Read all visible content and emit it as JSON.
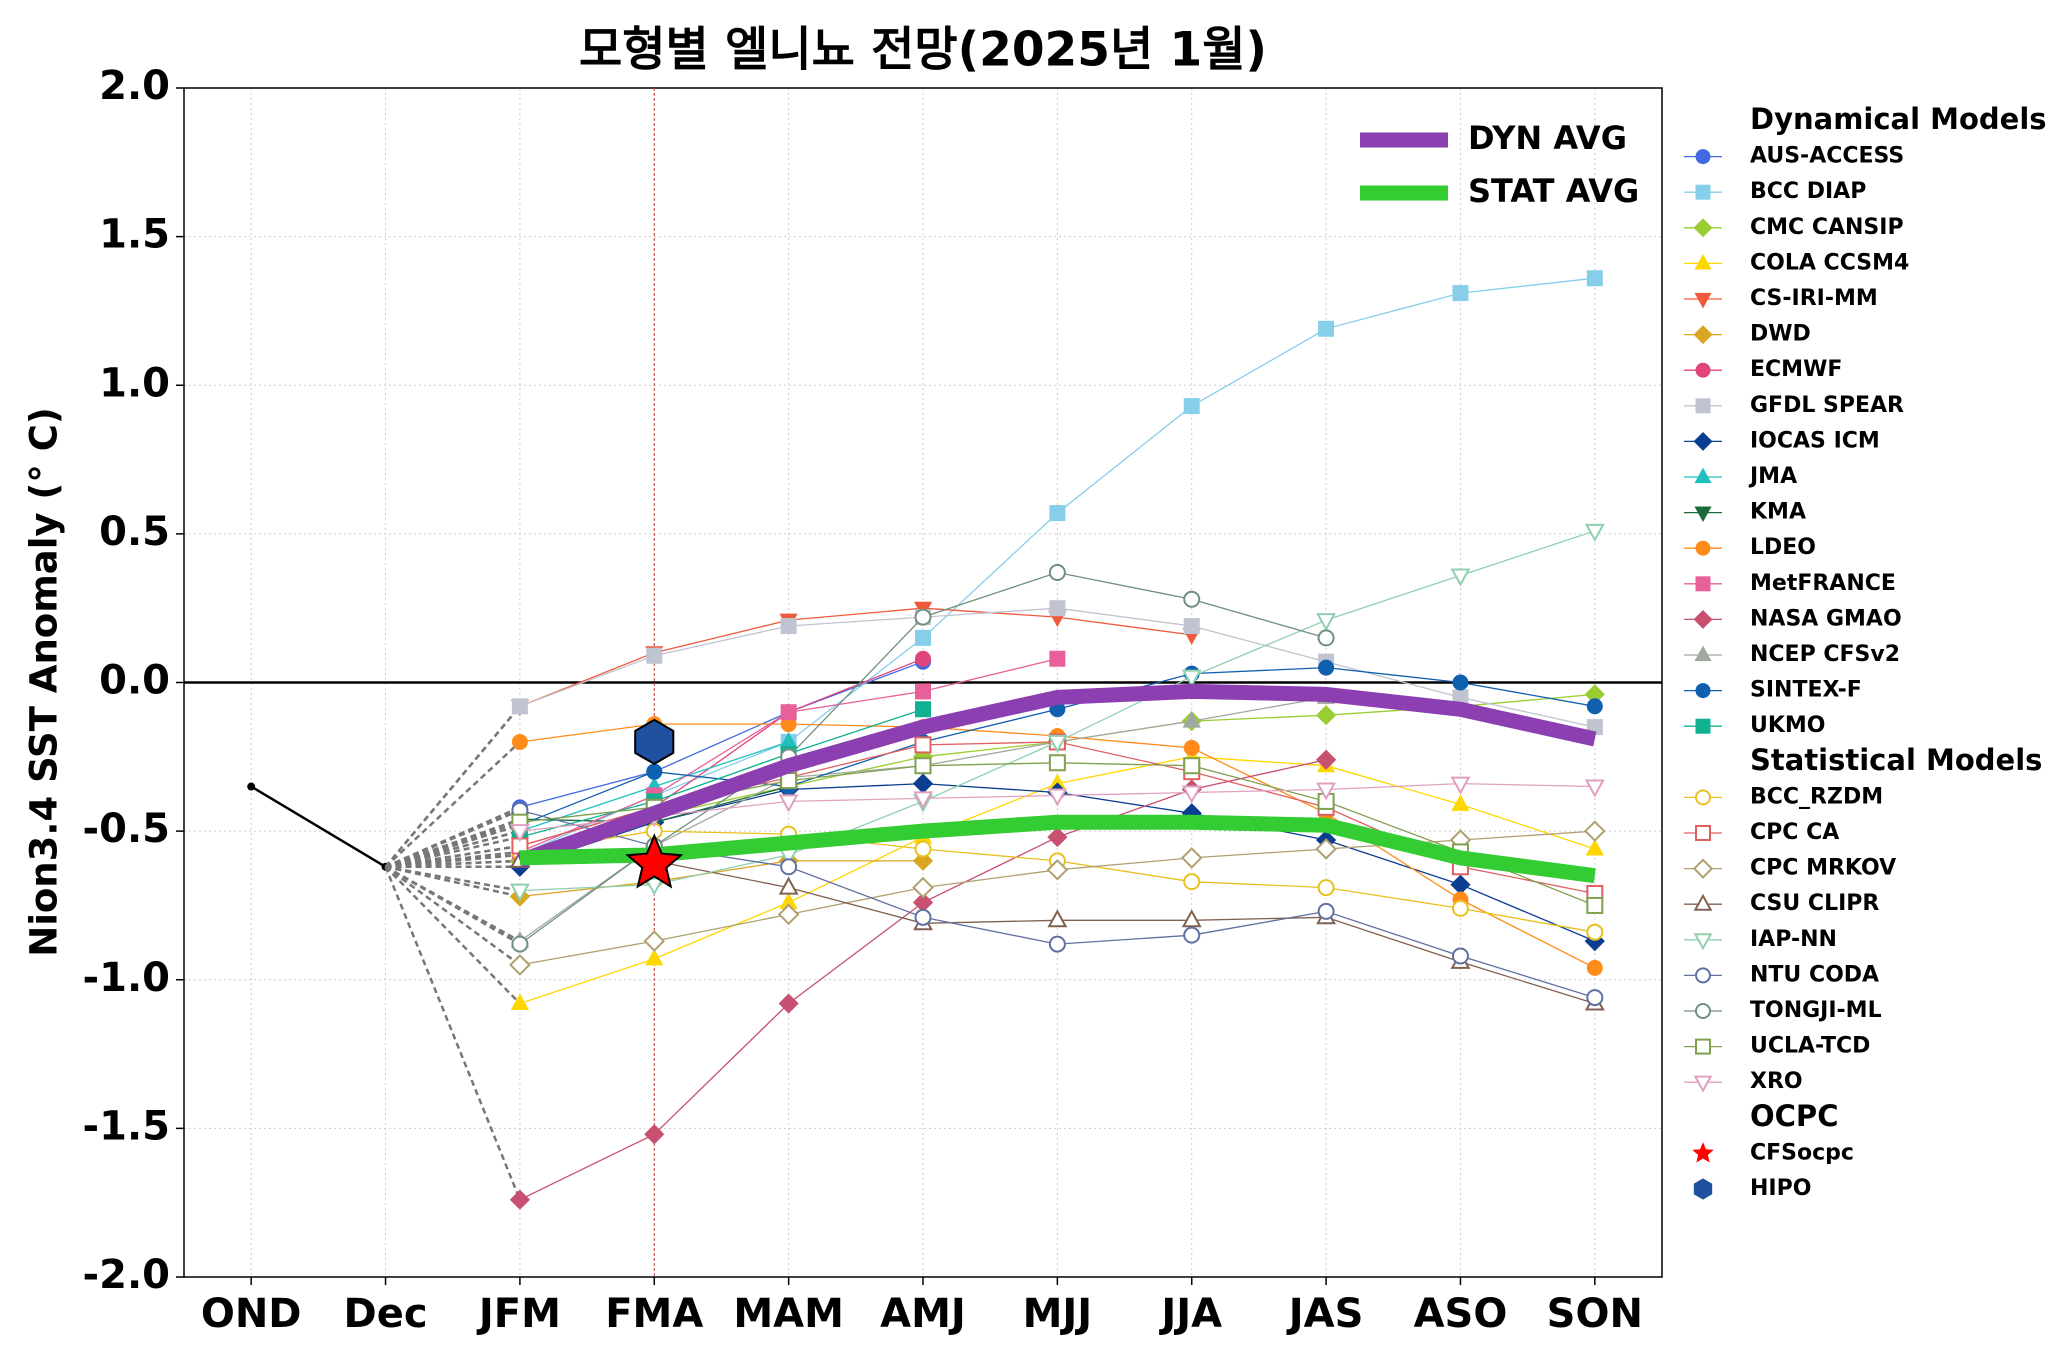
{
  "chart_data": {
    "type": "line",
    "title": "모형별 엘니뇨 전망(2025년 1월)",
    "y_label": "Nion3.4 SST Anomaly (° C)",
    "categories": [
      "OND",
      "Dec",
      "JFM",
      "FMA",
      "MAM",
      "AMJ",
      "MJJ",
      "JJA",
      "JAS",
      "ASO",
      "SON"
    ],
    "ylim": [
      -2.0,
      2.0
    ],
    "yticks": [
      {
        "value": 2.0,
        "label": "2.0"
      },
      {
        "value": 1.5,
        "label": "1.5"
      },
      {
        "value": 1.0,
        "label": "1.0"
      },
      {
        "value": 0.5,
        "label": "0.5"
      },
      {
        "value": 0.0,
        "label": "0.0"
      },
      {
        "value": -0.5,
        "label": "-0.5"
      },
      {
        "value": -1.0,
        "label": "-1.0"
      },
      {
        "value": -1.5,
        "label": "-1.5"
      },
      {
        "value": -2.0,
        "label": "-2.0"
      }
    ],
    "grid": true,
    "vline_category": 3,
    "observed": {
      "color": "#000000",
      "values": [
        -0.35,
        -0.62,
        null,
        null,
        null,
        null,
        null,
        null,
        null,
        null,
        null
      ]
    },
    "legend_groups": [
      "Dynamical Models",
      "Statistical Models",
      "OCPC"
    ],
    "series": [
      {
        "name": "AUS-ACCESS",
        "group": 0,
        "color": "#4169e1",
        "marker": "circle",
        "filled": true,
        "values": [
          null,
          null,
          -0.42,
          -0.3,
          -0.1,
          0.07,
          null,
          null,
          null,
          null,
          null
        ]
      },
      {
        "name": "BCC DIAP",
        "group": 0,
        "color": "#87ceeb",
        "marker": "square",
        "filled": true,
        "values": [
          null,
          null,
          -0.58,
          -0.38,
          -0.2,
          0.15,
          0.57,
          0.93,
          1.19,
          1.31,
          1.36
        ]
      },
      {
        "name": "CMC CANSIP",
        "group": 0,
        "color": "#9acd32",
        "marker": "diamond",
        "filled": true,
        "values": [
          null,
          null,
          -0.6,
          -0.45,
          -0.35,
          -0.25,
          -0.2,
          -0.13,
          -0.11,
          -0.08,
          -0.04
        ]
      },
      {
        "name": "COLA CCSM4",
        "group": 0,
        "color": "#ffd700",
        "marker": "triangle",
        "filled": true,
        "values": [
          null,
          null,
          -1.08,
          -0.93,
          -0.74,
          -0.52,
          -0.34,
          -0.25,
          -0.28,
          -0.41,
          -0.56
        ]
      },
      {
        "name": "CS-IRI-MM",
        "group": 0,
        "color": "#f05a3c",
        "marker": "triangle_down",
        "filled": true,
        "values": [
          null,
          null,
          -0.08,
          0.1,
          0.21,
          0.25,
          0.22,
          0.16,
          null,
          null,
          null
        ]
      },
      {
        "name": "DWD",
        "group": 0,
        "color": "#daa520",
        "marker": "diamond",
        "filled": true,
        "values": [
          null,
          null,
          -0.72,
          -0.67,
          -0.6,
          -0.6,
          null,
          null,
          null,
          null,
          null
        ]
      },
      {
        "name": "ECMWF",
        "group": 0,
        "color": "#e0457b",
        "marker": "circle",
        "filled": true,
        "values": [
          null,
          null,
          -0.55,
          -0.42,
          -0.1,
          0.08,
          null,
          null,
          null,
          null,
          null
        ]
      },
      {
        "name": "GFDL SPEAR",
        "group": 0,
        "color": "#c0c4d0",
        "marker": "square",
        "filled": true,
        "values": [
          null,
          null,
          -0.08,
          0.09,
          0.19,
          0.22,
          0.25,
          0.19,
          0.07,
          -0.05,
          -0.15
        ]
      },
      {
        "name": "IOCAS ICM",
        "group": 0,
        "color": "#0b3d91",
        "marker": "diamond",
        "filled": true,
        "values": [
          null,
          null,
          -0.62,
          -0.47,
          -0.36,
          -0.34,
          -0.37,
          -0.44,
          -0.53,
          -0.68,
          -0.87
        ]
      },
      {
        "name": "JMA",
        "group": 0,
        "color": "#20c0c0",
        "marker": "triangle",
        "filled": true,
        "values": [
          null,
          null,
          -0.5,
          -0.35,
          -0.2,
          null,
          null,
          null,
          null,
          null,
          null
        ]
      },
      {
        "name": "KMA",
        "group": 0,
        "color": "#1a6b3c",
        "marker": "triangle_down",
        "filled": true,
        "values": [
          null,
          null,
          -0.46,
          -0.47,
          -0.35,
          null,
          null,
          null,
          null,
          null,
          null
        ]
      },
      {
        "name": "LDEO",
        "group": 0,
        "color": "#ff8c1a",
        "marker": "circle",
        "filled": true,
        "values": [
          null,
          null,
          -0.2,
          -0.14,
          -0.14,
          -0.15,
          -0.18,
          -0.22,
          -0.44,
          -0.73,
          -0.96
        ]
      },
      {
        "name": "MetFRANCE",
        "group": 0,
        "color": "#e8609a",
        "marker": "square",
        "filled": true,
        "values": [
          null,
          null,
          -0.57,
          -0.38,
          -0.1,
          -0.03,
          0.08,
          null,
          null,
          null,
          null
        ]
      },
      {
        "name": "NASA GMAO",
        "group": 0,
        "color": "#c85070",
        "marker": "diamond",
        "filled": true,
        "values": [
          null,
          null,
          -1.74,
          -1.52,
          -1.08,
          -0.74,
          -0.52,
          -0.36,
          -0.26,
          null,
          null
        ]
      },
      {
        "name": "NCEP CFSv2",
        "group": 0,
        "color": "#a0a8a0",
        "marker": "triangle",
        "filled": true,
        "values": [
          null,
          null,
          -0.87,
          -0.55,
          -0.32,
          -0.28,
          -0.2,
          -0.13,
          -0.05,
          null,
          null
        ]
      },
      {
        "name": "SINTEX-F",
        "group": 0,
        "color": "#1060b0",
        "marker": "circle",
        "filled": true,
        "values": [
          null,
          null,
          -0.48,
          -0.3,
          -0.35,
          -0.2,
          -0.09,
          0.03,
          0.05,
          0.0,
          -0.08
        ]
      },
      {
        "name": "UKMO",
        "group": 0,
        "color": "#10b090",
        "marker": "square",
        "filled": true,
        "values": [
          null,
          null,
          -0.52,
          -0.4,
          -0.24,
          -0.09,
          null,
          null,
          null,
          null,
          null
        ]
      },
      {
        "name": "BCC_RZDM",
        "group": 1,
        "color": "#e8c020",
        "marker": "circle",
        "filled": false,
        "values": [
          null,
          null,
          -0.57,
          -0.5,
          -0.51,
          -0.56,
          -0.6,
          -0.67,
          -0.69,
          -0.76,
          -0.84
        ]
      },
      {
        "name": "CPC CA",
        "group": 1,
        "color": "#e06060",
        "marker": "square",
        "filled": false,
        "values": [
          null,
          null,
          -0.55,
          -0.42,
          -0.32,
          -0.21,
          -0.2,
          -0.3,
          -0.42,
          -0.62,
          -0.71
        ]
      },
      {
        "name": "CPC MRKOV",
        "group": 1,
        "color": "#b0a070",
        "marker": "diamond",
        "filled": false,
        "values": [
          null,
          null,
          -0.95,
          -0.87,
          -0.78,
          -0.69,
          -0.63,
          -0.59,
          -0.56,
          -0.53,
          -0.5
        ]
      },
      {
        "name": "CSU CLIPR",
        "group": 1,
        "color": "#806050",
        "marker": "triangle",
        "filled": false,
        "values": [
          null,
          null,
          -0.6,
          -0.6,
          -0.69,
          -0.81,
          -0.8,
          -0.8,
          -0.79,
          -0.94,
          -1.08
        ]
      },
      {
        "name": "IAP-NN",
        "group": 1,
        "color": "#90d0b0",
        "marker": "triangle_down",
        "filled": false,
        "values": [
          null,
          null,
          -0.7,
          -0.68,
          -0.58,
          -0.4,
          -0.2,
          0.02,
          0.21,
          0.36,
          0.51
        ]
      },
      {
        "name": "NTU CODA",
        "group": 1,
        "color": "#6070a0",
        "marker": "circle",
        "filled": false,
        "values": [
          null,
          null,
          -0.43,
          -0.55,
          -0.62,
          -0.79,
          -0.88,
          -0.85,
          -0.77,
          -0.92,
          -1.06
        ]
      },
      {
        "name": "TONGJI-ML",
        "group": 1,
        "color": "#709080",
        "marker": "circle",
        "filled": false,
        "values": [
          null,
          null,
          -0.88,
          -0.55,
          -0.25,
          0.22,
          0.37,
          0.28,
          0.15,
          null,
          null
        ]
      },
      {
        "name": "UCLA-TCD",
        "group": 1,
        "color": "#80a050",
        "marker": "square",
        "filled": false,
        "values": [
          null,
          null,
          -0.47,
          -0.42,
          -0.33,
          -0.28,
          -0.27,
          -0.28,
          -0.4,
          -0.57,
          -0.75
        ]
      },
      {
        "name": "XRO",
        "group": 1,
        "color": "#e0a0c0",
        "marker": "triangle_down",
        "filled": false,
        "values": [
          null,
          null,
          -0.5,
          -0.45,
          -0.4,
          -0.39,
          -0.38,
          -0.37,
          -0.36,
          -0.34,
          -0.35
        ]
      },
      {
        "name": "CFSocpc",
        "group": 2,
        "color": "#ff0000",
        "marker": "star",
        "filled": true,
        "values": [
          null,
          null,
          null,
          -0.61,
          null,
          null,
          null,
          null,
          null,
          null,
          null
        ]
      },
      {
        "name": "HIPO",
        "group": 2,
        "color": "#2050a0",
        "marker": "hexagon",
        "filled": true,
        "values": [
          null,
          null,
          null,
          -0.2,
          null,
          null,
          null,
          null,
          null,
          null,
          null
        ]
      }
    ],
    "averages": [
      {
        "name": "DYN AVG",
        "color": "#8b3fb0",
        "values": [
          null,
          null,
          -0.6,
          -0.44,
          -0.28,
          -0.15,
          -0.05,
          -0.03,
          -0.04,
          -0.09,
          -0.19
        ]
      },
      {
        "name": "STAT AVG",
        "color": "#33cc33",
        "values": [
          null,
          null,
          -0.59,
          -0.58,
          -0.54,
          -0.5,
          -0.47,
          -0.47,
          -0.48,
          -0.59,
          -0.65
        ]
      }
    ]
  }
}
